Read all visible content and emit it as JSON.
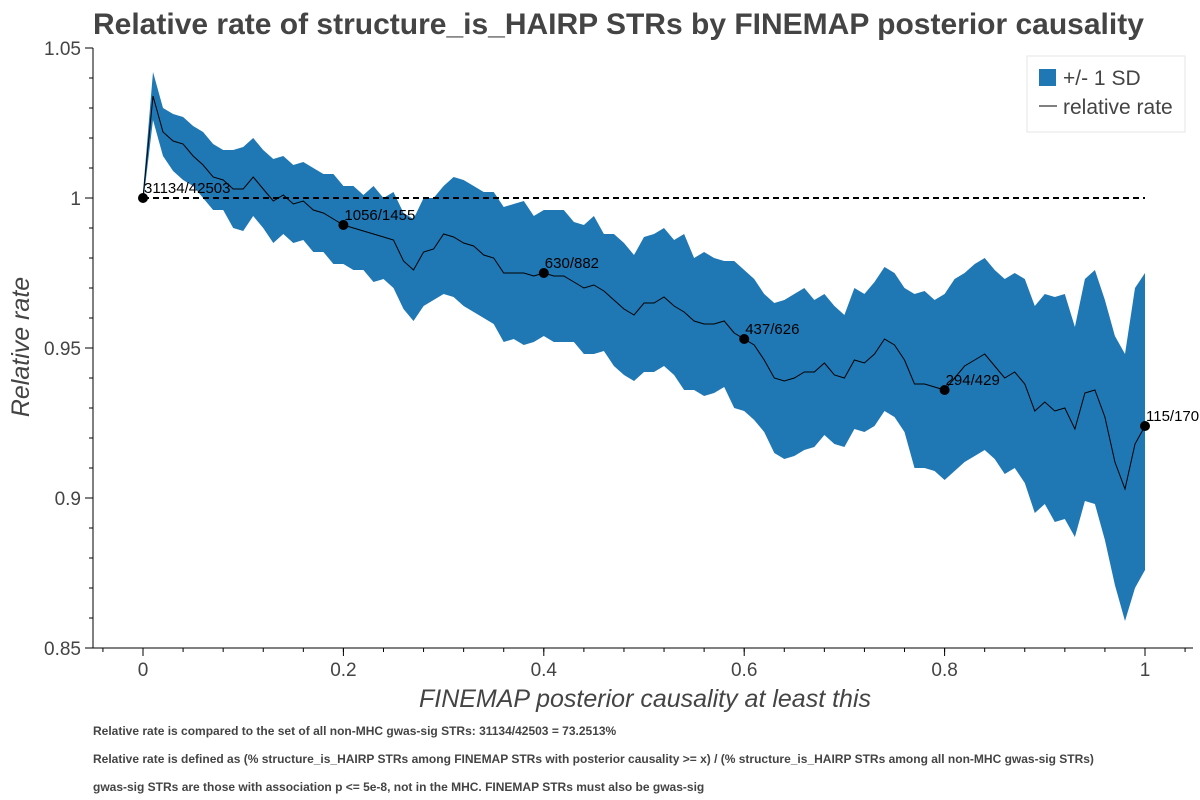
{
  "chart_data": {
    "type": "line",
    "title": "Relative rate of structure_is_HAIRP STRs by FINEMAP posterior causality",
    "xlabel": "FINEMAP posterior causality at least this",
    "ylabel": "Relative rate",
    "xlim": [
      -0.04,
      1.05
    ],
    "ylim": [
      0.85,
      1.05
    ],
    "x_ticks": [
      0,
      0.2,
      0.4,
      0.6,
      0.8,
      1
    ],
    "x_tick_labels": [
      "0",
      "0.2",
      "0.4",
      "0.6",
      "0.8",
      "1"
    ],
    "y_ticks": [
      0.85,
      0.9,
      0.95,
      1,
      1.05
    ],
    "y_tick_labels": [
      "0.85",
      "0.9",
      "0.95",
      "1",
      "1.05"
    ],
    "grid": false,
    "legend_position": "top-right",
    "reference_line": {
      "y": 1,
      "x_range": [
        0,
        1
      ],
      "style": "dashed",
      "color": "#000000"
    },
    "series": [
      {
        "name": "relative rate",
        "kind": "line",
        "color": "#000000",
        "x": [
          0,
          0.01,
          0.02,
          0.03,
          0.04,
          0.05,
          0.06,
          0.07,
          0.08,
          0.09,
          0.1,
          0.11,
          0.12,
          0.13,
          0.14,
          0.15,
          0.16,
          0.17,
          0.18,
          0.19,
          0.2,
          0.21,
          0.22,
          0.23,
          0.24,
          0.25,
          0.26,
          0.27,
          0.28,
          0.29,
          0.3,
          0.31,
          0.32,
          0.33,
          0.34,
          0.35,
          0.36,
          0.37,
          0.38,
          0.39,
          0.4,
          0.41,
          0.42,
          0.43,
          0.44,
          0.45,
          0.46,
          0.47,
          0.48,
          0.49,
          0.5,
          0.51,
          0.52,
          0.53,
          0.54,
          0.55,
          0.56,
          0.57,
          0.58,
          0.59,
          0.6,
          0.61,
          0.62,
          0.63,
          0.64,
          0.65,
          0.66,
          0.67,
          0.68,
          0.69,
          0.7,
          0.71,
          0.72,
          0.73,
          0.74,
          0.75,
          0.76,
          0.77,
          0.78,
          0.79,
          0.8,
          0.81,
          0.82,
          0.83,
          0.84,
          0.85,
          0.86,
          0.87,
          0.88,
          0.89,
          0.9,
          0.91,
          0.92,
          0.93,
          0.94,
          0.95,
          0.96,
          0.97,
          0.98,
          0.99,
          1
        ],
        "y": [
          1.0,
          1.034,
          1.022,
          1.019,
          1.018,
          1.014,
          1.011,
          1.007,
          1.006,
          1.003,
          1.003,
          1.007,
          1.003,
          0.999,
          1.001,
          0.998,
          0.999,
          0.996,
          0.995,
          0.993,
          0.991,
          0.99,
          0.989,
          0.988,
          0.987,
          0.986,
          0.979,
          0.976,
          0.982,
          0.983,
          0.988,
          0.987,
          0.985,
          0.984,
          0.981,
          0.98,
          0.975,
          0.975,
          0.975,
          0.974,
          0.975,
          0.974,
          0.974,
          0.972,
          0.97,
          0.971,
          0.969,
          0.966,
          0.963,
          0.961,
          0.965,
          0.965,
          0.967,
          0.964,
          0.962,
          0.959,
          0.958,
          0.958,
          0.959,
          0.955,
          0.953,
          0.951,
          0.946,
          0.94,
          0.939,
          0.94,
          0.942,
          0.942,
          0.945,
          0.941,
          0.94,
          0.946,
          0.945,
          0.948,
          0.953,
          0.951,
          0.946,
          0.938,
          0.938,
          0.937,
          0.936,
          0.94,
          0.944,
          0.946,
          0.948,
          0.944,
          0.94,
          0.942,
          0.938,
          0.929,
          0.932,
          0.929,
          0.93,
          0.923,
          0.935,
          0.936,
          0.927,
          0.912,
          0.903,
          0.918,
          0.924
        ]
      },
      {
        "name": "+/- 1 SD",
        "kind": "band",
        "color": "#1f77b4",
        "x": [
          0,
          0.01,
          0.02,
          0.03,
          0.04,
          0.05,
          0.06,
          0.07,
          0.08,
          0.09,
          0.1,
          0.11,
          0.12,
          0.13,
          0.14,
          0.15,
          0.16,
          0.17,
          0.18,
          0.19,
          0.2,
          0.21,
          0.22,
          0.23,
          0.24,
          0.25,
          0.26,
          0.27,
          0.28,
          0.29,
          0.3,
          0.31,
          0.32,
          0.33,
          0.34,
          0.35,
          0.36,
          0.37,
          0.38,
          0.39,
          0.4,
          0.41,
          0.42,
          0.43,
          0.44,
          0.45,
          0.46,
          0.47,
          0.48,
          0.49,
          0.5,
          0.51,
          0.52,
          0.53,
          0.54,
          0.55,
          0.56,
          0.57,
          0.58,
          0.59,
          0.6,
          0.61,
          0.62,
          0.63,
          0.64,
          0.65,
          0.66,
          0.67,
          0.68,
          0.69,
          0.7,
          0.71,
          0.72,
          0.73,
          0.74,
          0.75,
          0.76,
          0.77,
          0.78,
          0.79,
          0.8,
          0.81,
          0.82,
          0.83,
          0.84,
          0.85,
          0.86,
          0.87,
          0.88,
          0.89,
          0.9,
          0.91,
          0.92,
          0.93,
          0.94,
          0.95,
          0.96,
          0.97,
          0.98,
          0.99,
          1
        ],
        "upper": [
          1.002,
          1.042,
          1.03,
          1.028,
          1.027,
          1.024,
          1.022,
          1.018,
          1.016,
          1.016,
          1.017,
          1.02,
          1.016,
          1.013,
          1.014,
          1.011,
          1.012,
          1.01,
          1.008,
          1.008,
          1.004,
          1.004,
          1.001,
          1.004,
          1.0,
          1.002,
          0.995,
          0.993,
          1.0,
          1.0,
          1.004,
          1.007,
          1.006,
          1.004,
          1.002,
          1.002,
          0.997,
          0.998,
          0.999,
          0.994,
          0.996,
          0.996,
          0.996,
          0.992,
          0.991,
          0.994,
          0.988,
          0.988,
          0.985,
          0.981,
          0.987,
          0.988,
          0.99,
          0.986,
          0.988,
          0.98,
          0.982,
          0.98,
          0.979,
          0.979,
          0.976,
          0.973,
          0.968,
          0.965,
          0.966,
          0.968,
          0.97,
          0.966,
          0.968,
          0.964,
          0.961,
          0.97,
          0.968,
          0.972,
          0.977,
          0.975,
          0.97,
          0.968,
          0.969,
          0.966,
          0.968,
          0.973,
          0.975,
          0.978,
          0.98,
          0.976,
          0.973,
          0.975,
          0.973,
          0.964,
          0.968,
          0.967,
          0.968,
          0.957,
          0.973,
          0.976,
          0.966,
          0.954,
          0.948,
          0.97,
          0.975
        ],
        "lower": [
          0.998,
          1.026,
          1.014,
          1.009,
          1.006,
          1.004,
          1.0,
          0.996,
          0.996,
          0.99,
          0.989,
          0.994,
          0.99,
          0.985,
          0.988,
          0.985,
          0.986,
          0.982,
          0.982,
          0.978,
          0.978,
          0.976,
          0.976,
          0.972,
          0.973,
          0.97,
          0.963,
          0.959,
          0.964,
          0.966,
          0.968,
          0.967,
          0.964,
          0.962,
          0.96,
          0.958,
          0.952,
          0.953,
          0.951,
          0.952,
          0.954,
          0.952,
          0.952,
          0.952,
          0.948,
          0.948,
          0.949,
          0.944,
          0.941,
          0.939,
          0.942,
          0.942,
          0.944,
          0.941,
          0.936,
          0.936,
          0.934,
          0.935,
          0.937,
          0.93,
          0.929,
          0.926,
          0.922,
          0.915,
          0.913,
          0.914,
          0.916,
          0.917,
          0.921,
          0.918,
          0.917,
          0.923,
          0.922,
          0.924,
          0.929,
          0.927,
          0.922,
          0.91,
          0.91,
          0.909,
          0.906,
          0.909,
          0.912,
          0.914,
          0.916,
          0.913,
          0.908,
          0.91,
          0.905,
          0.895,
          0.898,
          0.892,
          0.893,
          0.887,
          0.899,
          0.898,
          0.886,
          0.871,
          0.859,
          0.87,
          0.876
        ]
      }
    ],
    "annotated_points": [
      {
        "x": 0,
        "y": 1.0,
        "label": "31134/42503"
      },
      {
        "x": 0.2,
        "y": 0.991,
        "label": "1056/1455"
      },
      {
        "x": 0.4,
        "y": 0.975,
        "label": "630/882"
      },
      {
        "x": 0.6,
        "y": 0.953,
        "label": "437/626"
      },
      {
        "x": 0.8,
        "y": 0.936,
        "label": "294/429"
      },
      {
        "x": 1,
        "y": 0.924,
        "label": "115/170"
      }
    ],
    "notes": [
      "Relative rate is compared to the set of all non-MHC gwas-sig STRs: 31134/42503 = 73.2513%",
      "Relative rate is defined as (% structure_is_HAIRP STRs among FINEMAP STRs with posterior causality >= x) / (% structure_is_HAIRP STRs among all non-MHC gwas-sig STRs)",
      "gwas-sig STRs are those with association p <= 5e-8, not in the MHC. FINEMAP STRs must also be gwas-sig"
    ]
  }
}
